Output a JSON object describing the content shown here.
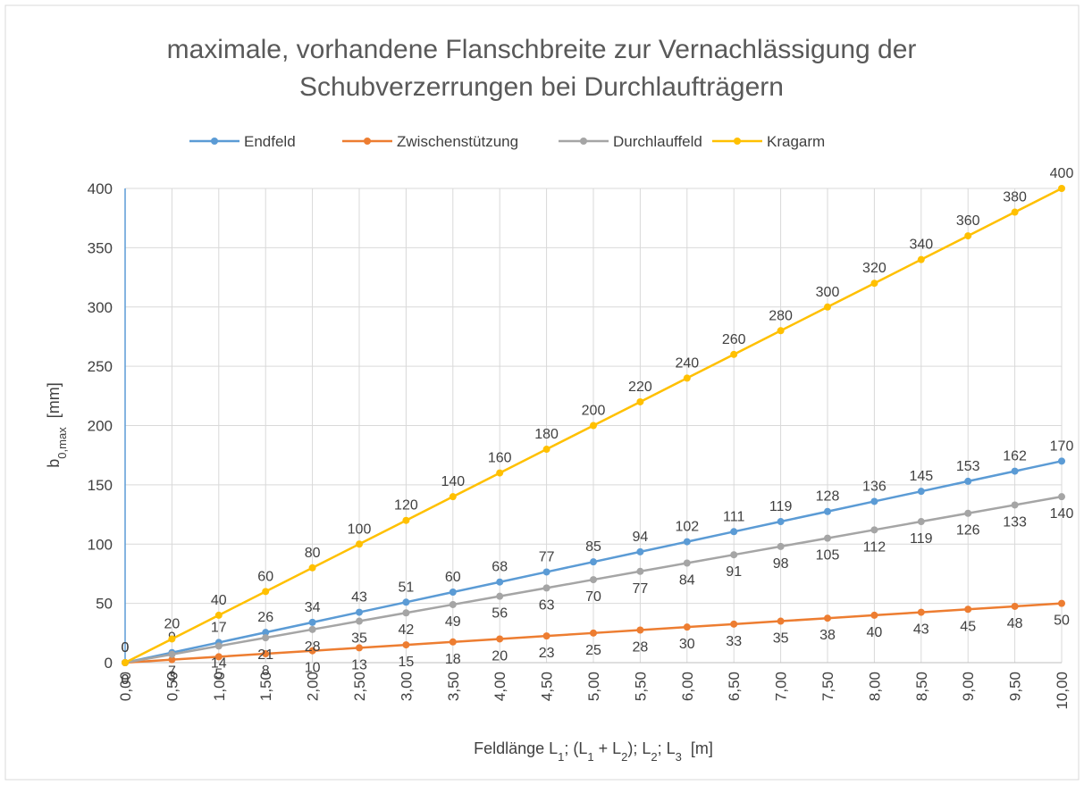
{
  "chart_data": {
    "type": "line",
    "title": [
      "maximale, vorhandene Flanschbreite zur Vernachlässigung der",
      "Schubverzerrungen bei Durchlaufträgern"
    ],
    "y_label": [
      {
        "text": "b"
      },
      {
        "text": "0,max",
        "sub": true
      },
      {
        "text": "  [mm]"
      }
    ],
    "x_label": [
      {
        "text": "Feldlänge L"
      },
      {
        "text": "1",
        "sub": true
      },
      {
        "text": "; (L"
      },
      {
        "text": "1",
        "sub": true
      },
      {
        "text": " + L"
      },
      {
        "text": "2",
        "sub": true
      },
      {
        "text": "); L"
      },
      {
        "text": "2",
        "sub": true
      },
      {
        "text": "; L"
      },
      {
        "text": "3",
        "sub": true
      },
      {
        "text": "  [m]"
      }
    ],
    "categories": [
      "0,00",
      "0,50",
      "1,00",
      "1,50",
      "2,00",
      "2,50",
      "3,00",
      "3,50",
      "4,00",
      "4,50",
      "5,00",
      "5,50",
      "6,00",
      "6,50",
      "7,00",
      "7,50",
      "8,00",
      "8,50",
      "9,00",
      "9,50",
      "10,00"
    ],
    "ylim": [
      0,
      400
    ],
    "yticks": [
      0,
      50,
      100,
      150,
      200,
      250,
      300,
      350,
      400
    ],
    "grid": true,
    "legend": "top",
    "series": [
      {
        "name": "Endfeld",
        "color": "#5b9bd5",
        "label_position": "above",
        "values": [
          0,
          8.5,
          17,
          25.5,
          34,
          42.5,
          51,
          59.5,
          68,
          76.5,
          85,
          93.5,
          102,
          110.5,
          119,
          127.5,
          136,
          144.5,
          153,
          161.5,
          170
        ],
        "value_labels": [
          "0",
          "9",
          "17",
          "26",
          "34",
          "43",
          "51",
          "60",
          "68",
          "77",
          "85",
          "94",
          "102",
          "111",
          "119",
          "128",
          "136",
          "145",
          "153",
          "162",
          "170"
        ]
      },
      {
        "name": "Zwischenstützung",
        "color": "#ed7d31",
        "label_position": "below",
        "values": [
          0,
          2.5,
          5,
          7.5,
          10,
          12.5,
          15,
          17.5,
          20,
          22.5,
          25,
          27.5,
          30,
          32.5,
          35,
          37.5,
          40,
          42.5,
          45,
          47.5,
          50
        ],
        "value_labels": [
          "0",
          "3",
          "5",
          "8",
          "10",
          "13",
          "15",
          "18",
          "20",
          "23",
          "25",
          "28",
          "30",
          "33",
          "35",
          "38",
          "40",
          "43",
          "45",
          "48",
          "50"
        ]
      },
      {
        "name": "Durchlauffeld",
        "color": "#a5a5a5",
        "label_position": "below",
        "values": [
          0,
          7,
          14,
          21,
          28,
          35,
          42,
          49,
          56,
          63,
          70,
          77,
          84,
          91,
          98,
          105,
          112,
          119,
          126,
          133,
          140
        ]
      },
      {
        "name": "Kragarm",
        "color": "#ffc000",
        "label_position": "above",
        "values": [
          0,
          20,
          40,
          60,
          80,
          100,
          120,
          140,
          160,
          180,
          200,
          220,
          240,
          260,
          280,
          300,
          320,
          340,
          360,
          380,
          400
        ]
      }
    ]
  }
}
